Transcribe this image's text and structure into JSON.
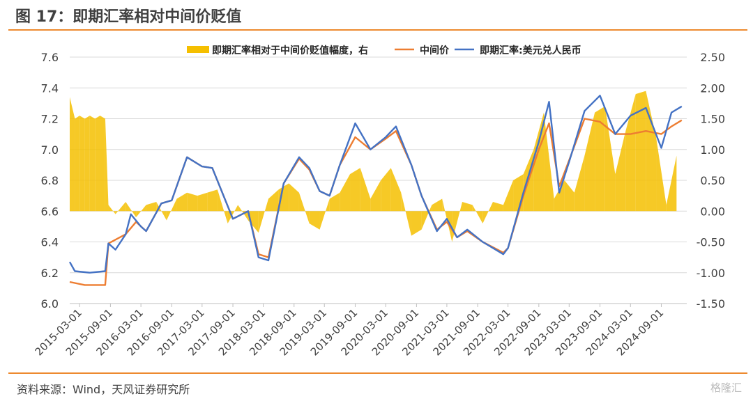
{
  "header": {
    "title": "图 17：即期汇率相对中间价贬值"
  },
  "footer": {
    "source": "资料来源：Wind，天风证券研究所",
    "watermark": "格隆汇"
  },
  "colors": {
    "bars": "#F5BF00",
    "mid": "#ED7D31",
    "spot": "#4472C4",
    "accent": "#ED8A2F"
  },
  "chart_data": {
    "type": "line",
    "legend_position": "top",
    "grid": true,
    "x_range": [
      "2015-01-01",
      "2025-01-31"
    ],
    "x_ticks": [
      "2015-03-01",
      "2015-09-01",
      "2016-03-01",
      "2016-09-01",
      "2017-03-01",
      "2017-09-01",
      "2018-03-01",
      "2018-09-01",
      "2019-03-01",
      "2019-09-01",
      "2020-03-01",
      "2020-09-01",
      "2021-03-01",
      "2021-09-01",
      "2022-03-01",
      "2022-09-01",
      "2023-03-01",
      "2023-09-01",
      "2024-03-01",
      "2024-09-01"
    ],
    "y_left": {
      "min": 6.0,
      "max": 7.6,
      "ticks": [
        "6.0",
        "6.2",
        "6.4",
        "6.6",
        "6.8",
        "7.0",
        "7.2",
        "7.4",
        "7.6"
      ]
    },
    "y_right": {
      "min": -1.5,
      "max": 2.5,
      "ticks": [
        "-1.50",
        "-1.00",
        "-0.50",
        "0.00",
        "0.50",
        "1.00",
        "1.50",
        "2.00",
        "2.50"
      ]
    },
    "series": [
      {
        "name": "即期汇率相对于中间价贬值幅度，右",
        "kind": "bar",
        "axis": "right",
        "points": [
          [
            "2015-01-01",
            1.85
          ],
          [
            "2015-02-01",
            1.5
          ],
          [
            "2015-03-01",
            1.55
          ],
          [
            "2015-04-01",
            1.5
          ],
          [
            "2015-05-01",
            1.55
          ],
          [
            "2015-06-01",
            1.5
          ],
          [
            "2015-07-01",
            1.55
          ],
          [
            "2015-08-01",
            1.5
          ],
          [
            "2015-08-20",
            0.1
          ],
          [
            "2015-10-01",
            -0.05
          ],
          [
            "2015-12-01",
            0.15
          ],
          [
            "2016-02-01",
            -0.1
          ],
          [
            "2016-04-01",
            0.1
          ],
          [
            "2016-06-01",
            0.15
          ],
          [
            "2016-08-01",
            -0.15
          ],
          [
            "2016-10-01",
            0.2
          ],
          [
            "2016-12-01",
            0.3
          ],
          [
            "2017-02-01",
            0.25
          ],
          [
            "2017-04-01",
            0.3
          ],
          [
            "2017-06-01",
            0.35
          ],
          [
            "2017-08-01",
            -0.2
          ],
          [
            "2017-10-01",
            0.1
          ],
          [
            "2017-12-01",
            -0.15
          ],
          [
            "2018-02-01",
            -0.35
          ],
          [
            "2018-04-01",
            0.2
          ],
          [
            "2018-06-01",
            0.35
          ],
          [
            "2018-08-01",
            0.45
          ],
          [
            "2018-10-01",
            0.3
          ],
          [
            "2018-12-01",
            -0.2
          ],
          [
            "2019-02-01",
            -0.3
          ],
          [
            "2019-04-01",
            0.2
          ],
          [
            "2019-06-01",
            0.3
          ],
          [
            "2019-08-01",
            0.6
          ],
          [
            "2019-10-01",
            0.7
          ],
          [
            "2019-12-01",
            0.2
          ],
          [
            "2020-02-01",
            0.5
          ],
          [
            "2020-04-01",
            0.7
          ],
          [
            "2020-06-01",
            0.3
          ],
          [
            "2020-08-01",
            -0.4
          ],
          [
            "2020-10-01",
            -0.3
          ],
          [
            "2020-12-01",
            0.1
          ],
          [
            "2021-02-01",
            0.2
          ],
          [
            "2021-04-01",
            -0.5
          ],
          [
            "2021-06-01",
            0.15
          ],
          [
            "2021-08-01",
            0.1
          ],
          [
            "2021-10-01",
            -0.2
          ],
          [
            "2021-12-01",
            0.15
          ],
          [
            "2022-02-01",
            0.1
          ],
          [
            "2022-04-01",
            0.5
          ],
          [
            "2022-06-01",
            0.6
          ],
          [
            "2022-08-01",
            1.0
          ],
          [
            "2022-10-01",
            1.6
          ],
          [
            "2022-12-01",
            0.2
          ],
          [
            "2023-02-01",
            0.5
          ],
          [
            "2023-04-01",
            0.3
          ],
          [
            "2023-06-01",
            0.9
          ],
          [
            "2023-08-01",
            1.6
          ],
          [
            "2023-10-01",
            1.7
          ],
          [
            "2023-12-01",
            0.6
          ],
          [
            "2024-02-01",
            1.3
          ],
          [
            "2024-04-01",
            1.9
          ],
          [
            "2024-06-01",
            1.95
          ],
          [
            "2024-08-01",
            1.2
          ],
          [
            "2024-10-01",
            0.1
          ],
          [
            "2024-12-01",
            0.9
          ]
        ]
      },
      {
        "name": "中间价",
        "kind": "line",
        "axis": "left",
        "points": [
          [
            "2015-01-01",
            6.14
          ],
          [
            "2015-04-01",
            6.12
          ],
          [
            "2015-08-01",
            6.12
          ],
          [
            "2015-08-20",
            6.39
          ],
          [
            "2015-12-01",
            6.45
          ],
          [
            "2016-02-01",
            6.53
          ],
          [
            "2016-04-01",
            6.47
          ],
          [
            "2016-07-01",
            6.65
          ],
          [
            "2016-09-01",
            6.67
          ],
          [
            "2016-12-01",
            6.95
          ],
          [
            "2017-03-01",
            6.89
          ],
          [
            "2017-05-01",
            6.88
          ],
          [
            "2017-09-01",
            6.55
          ],
          [
            "2017-12-01",
            6.6
          ],
          [
            "2018-02-01",
            6.32
          ],
          [
            "2018-04-01",
            6.3
          ],
          [
            "2018-07-01",
            6.78
          ],
          [
            "2018-10-01",
            6.94
          ],
          [
            "2018-12-01",
            6.87
          ],
          [
            "2019-02-01",
            6.73
          ],
          [
            "2019-04-01",
            6.7
          ],
          [
            "2019-06-01",
            6.9
          ],
          [
            "2019-09-01",
            7.08
          ],
          [
            "2019-12-01",
            7.0
          ],
          [
            "2020-03-01",
            7.07
          ],
          [
            "2020-05-01",
            7.12
          ],
          [
            "2020-08-01",
            6.9
          ],
          [
            "2020-10-01",
            6.7
          ],
          [
            "2021-01-01",
            6.48
          ],
          [
            "2021-03-01",
            6.53
          ],
          [
            "2021-05-01",
            6.43
          ],
          [
            "2021-07-01",
            6.47
          ],
          [
            "2021-10-01",
            6.4
          ],
          [
            "2022-02-01",
            6.33
          ],
          [
            "2022-03-01",
            6.36
          ],
          [
            "2022-06-01",
            6.7
          ],
          [
            "2022-09-01",
            7.0
          ],
          [
            "2022-11-01",
            7.17
          ],
          [
            "2023-01-01",
            6.76
          ],
          [
            "2023-03-01",
            6.93
          ],
          [
            "2023-06-01",
            7.2
          ],
          [
            "2023-09-01",
            7.18
          ],
          [
            "2023-12-01",
            7.1
          ],
          [
            "2024-03-01",
            7.1
          ],
          [
            "2024-06-01",
            7.12
          ],
          [
            "2024-09-01",
            7.1
          ],
          [
            "2024-11-01",
            7.15
          ],
          [
            "2025-01-01",
            7.19
          ]
        ]
      },
      {
        "name": "即期汇率:美元兑人民币",
        "kind": "line",
        "axis": "left",
        "points": [
          [
            "2015-01-01",
            6.27
          ],
          [
            "2015-02-01",
            6.21
          ],
          [
            "2015-05-01",
            6.2
          ],
          [
            "2015-08-01",
            6.21
          ],
          [
            "2015-08-20",
            6.39
          ],
          [
            "2015-10-01",
            6.35
          ],
          [
            "2015-12-01",
            6.45
          ],
          [
            "2016-01-01",
            6.58
          ],
          [
            "2016-03-01",
            6.5
          ],
          [
            "2016-04-01",
            6.47
          ],
          [
            "2016-07-01",
            6.65
          ],
          [
            "2016-09-01",
            6.67
          ],
          [
            "2016-12-01",
            6.95
          ],
          [
            "2017-03-01",
            6.89
          ],
          [
            "2017-05-01",
            6.88
          ],
          [
            "2017-09-01",
            6.55
          ],
          [
            "2017-12-01",
            6.6
          ],
          [
            "2018-02-01",
            6.3
          ],
          [
            "2018-04-01",
            6.28
          ],
          [
            "2018-07-01",
            6.78
          ],
          [
            "2018-10-01",
            6.95
          ],
          [
            "2018-12-01",
            6.88
          ],
          [
            "2019-02-01",
            6.73
          ],
          [
            "2019-04-01",
            6.7
          ],
          [
            "2019-06-01",
            6.9
          ],
          [
            "2019-09-01",
            7.17
          ],
          [
            "2019-12-01",
            7.0
          ],
          [
            "2020-03-01",
            7.08
          ],
          [
            "2020-05-01",
            7.15
          ],
          [
            "2020-08-01",
            6.9
          ],
          [
            "2020-10-01",
            6.7
          ],
          [
            "2021-01-01",
            6.47
          ],
          [
            "2021-03-01",
            6.55
          ],
          [
            "2021-05-01",
            6.43
          ],
          [
            "2021-07-01",
            6.48
          ],
          [
            "2021-10-01",
            6.4
          ],
          [
            "2022-02-01",
            6.32
          ],
          [
            "2022-03-01",
            6.36
          ],
          [
            "2022-06-01",
            6.72
          ],
          [
            "2022-09-01",
            7.05
          ],
          [
            "2022-11-01",
            7.31
          ],
          [
            "2023-01-01",
            6.72
          ],
          [
            "2023-03-01",
            6.92
          ],
          [
            "2023-06-01",
            7.25
          ],
          [
            "2023-09-01",
            7.35
          ],
          [
            "2023-12-01",
            7.1
          ],
          [
            "2024-03-01",
            7.22
          ],
          [
            "2024-06-01",
            7.27
          ],
          [
            "2024-09-01",
            7.01
          ],
          [
            "2024-11-01",
            7.24
          ],
          [
            "2025-01-01",
            7.28
          ]
        ]
      }
    ]
  }
}
